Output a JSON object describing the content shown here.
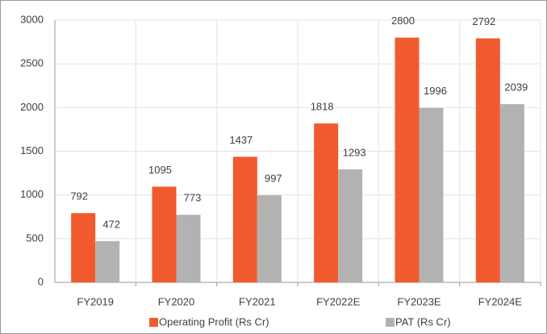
{
  "chart_data": {
    "type": "bar",
    "categories": [
      "FY2019",
      "FY2020",
      "FY2021",
      "FY2022E",
      "FY2023E",
      "FY2024E"
    ],
    "series": [
      {
        "name": "Operating Profit (Rs Cr)",
        "color": "#f05a2e",
        "values": [
          792,
          1095,
          1437,
          1818,
          2800,
          2792
        ]
      },
      {
        "name": "PAT (Rs Cr)",
        "color": "#b2b2b2",
        "values": [
          472,
          773,
          997,
          1293,
          1996,
          2039
        ]
      }
    ],
    "ylim": [
      0,
      3000
    ],
    "yticks": [
      0,
      500,
      1000,
      1500,
      2000,
      2500,
      3000
    ],
    "grid": true,
    "legend": "bottom"
  }
}
